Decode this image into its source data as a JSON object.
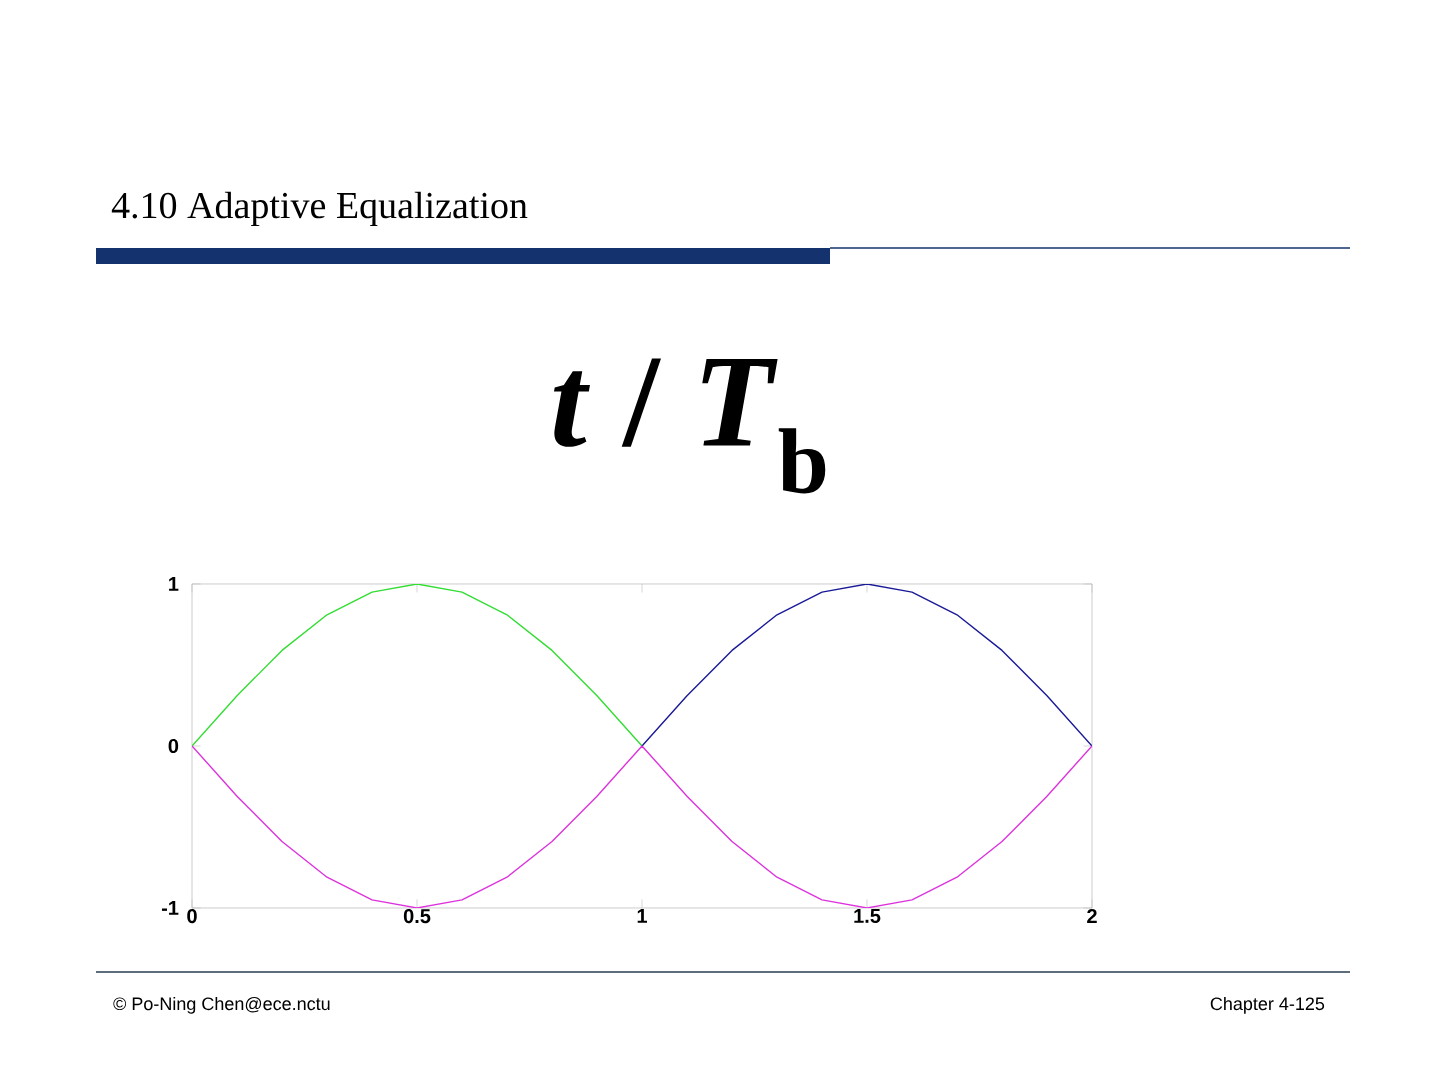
{
  "chart_data": {
    "type": "line",
    "title": "4.10 Adaptive Equalization",
    "xlabel": "*t* / *T*$_{b}$",
    "xlim": [
      0,
      2
    ],
    "ylim": [
      -1,
      1
    ],
    "xticks": [
      0,
      0.5,
      1,
      1.5,
      2
    ],
    "yticks": [
      -1,
      0,
      1
    ],
    "series": [
      {
        "color": "#33dd33",
        "x": [
          0,
          0.1,
          0.2,
          0.3,
          0.4,
          0.5,
          0.6,
          0.7,
          0.8,
          0.9,
          1
        ],
        "values": [
          0,
          0.31,
          0.59,
          0.81,
          0.95,
          1,
          0.95,
          0.81,
          0.59,
          0.31,
          0
        ]
      },
      {
        "color": "#1a1a99",
        "x": [
          1,
          1.1,
          1.2,
          1.3,
          1.4,
          1.5,
          1.6,
          1.7,
          1.8,
          1.9,
          2
        ],
        "values": [
          0,
          0.31,
          0.59,
          0.81,
          0.95,
          1,
          0.95,
          0.81,
          0.59,
          0.31,
          0
        ]
      },
      {
        "color": "#dd33dd",
        "x": [
          0,
          0.1,
          0.2,
          0.3,
          0.4,
          0.5,
          0.6,
          0.7,
          0.8,
          0.9,
          1,
          1.1,
          1.2,
          1.3,
          1.4,
          1.5,
          1.6,
          1.7,
          1.8,
          1.9,
          2
        ],
        "values": [
          0,
          -0.31,
          -0.59,
          -0.81,
          -0.95,
          -1,
          -0.95,
          -0.81,
          -0.59,
          -0.31,
          0,
          -0.31,
          -0.59,
          -0.81,
          -0.95,
          -1,
          -0.95,
          -0.81,
          -0.59,
          -0.31,
          0
        ]
      }
    ],
    "annotations": [
      "© Po-Ning Chen@ece.nctu",
      "Chapter 4-125"
    ]
  }
}
